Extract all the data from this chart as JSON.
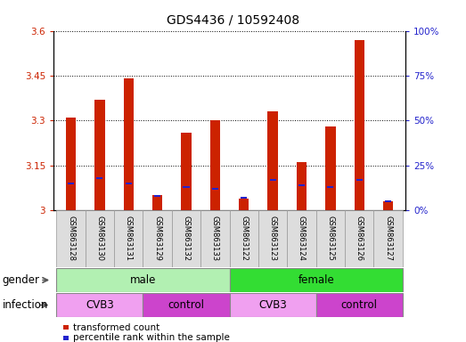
{
  "title": "GDS4436 / 10592408",
  "samples": [
    "GSM863128",
    "GSM863130",
    "GSM863131",
    "GSM863129",
    "GSM863132",
    "GSM863133",
    "GSM863122",
    "GSM863123",
    "GSM863124",
    "GSM863125",
    "GSM863126",
    "GSM863127"
  ],
  "red_values": [
    3.31,
    3.37,
    3.44,
    3.05,
    3.26,
    3.3,
    3.04,
    3.33,
    3.16,
    3.28,
    3.57,
    3.03
  ],
  "blue_pct": [
    15,
    18,
    15,
    8,
    13,
    12,
    7,
    17,
    14,
    13,
    17,
    5
  ],
  "ylim_left": [
    3.0,
    3.6
  ],
  "ylim_right": [
    0,
    100
  ],
  "yticks_left": [
    3.0,
    3.15,
    3.3,
    3.45,
    3.6
  ],
  "yticks_right": [
    0,
    25,
    50,
    75,
    100
  ],
  "ytick_labels_left": [
    "3",
    "3.15",
    "3.3",
    "3.45",
    "3.6"
  ],
  "ytick_labels_right": [
    "0%",
    "25%",
    "50%",
    "75%",
    "100%"
  ],
  "gender_groups": [
    {
      "label": "male",
      "start": 0,
      "end": 6,
      "color": "#B2F0B2"
    },
    {
      "label": "female",
      "start": 6,
      "end": 12,
      "color": "#33DD33"
    }
  ],
  "infection_groups": [
    {
      "label": "CVB3",
      "start": 0,
      "end": 3,
      "color": "#F0A0F0"
    },
    {
      "label": "control",
      "start": 3,
      "end": 6,
      "color": "#CC44CC"
    },
    {
      "label": "CVB3",
      "start": 6,
      "end": 9,
      "color": "#F0A0F0"
    },
    {
      "label": "control",
      "start": 9,
      "end": 12,
      "color": "#CC44CC"
    }
  ],
  "red_color": "#CC2200",
  "blue_color": "#2222CC",
  "bar_bottom": 3.0,
  "legend_items": [
    {
      "color": "#CC2200",
      "label": "transformed count"
    },
    {
      "color": "#2222CC",
      "label": "percentile rank within the sample"
    }
  ],
  "title_fontsize": 10,
  "tick_fontsize": 7.5,
  "label_fontsize": 8.5
}
